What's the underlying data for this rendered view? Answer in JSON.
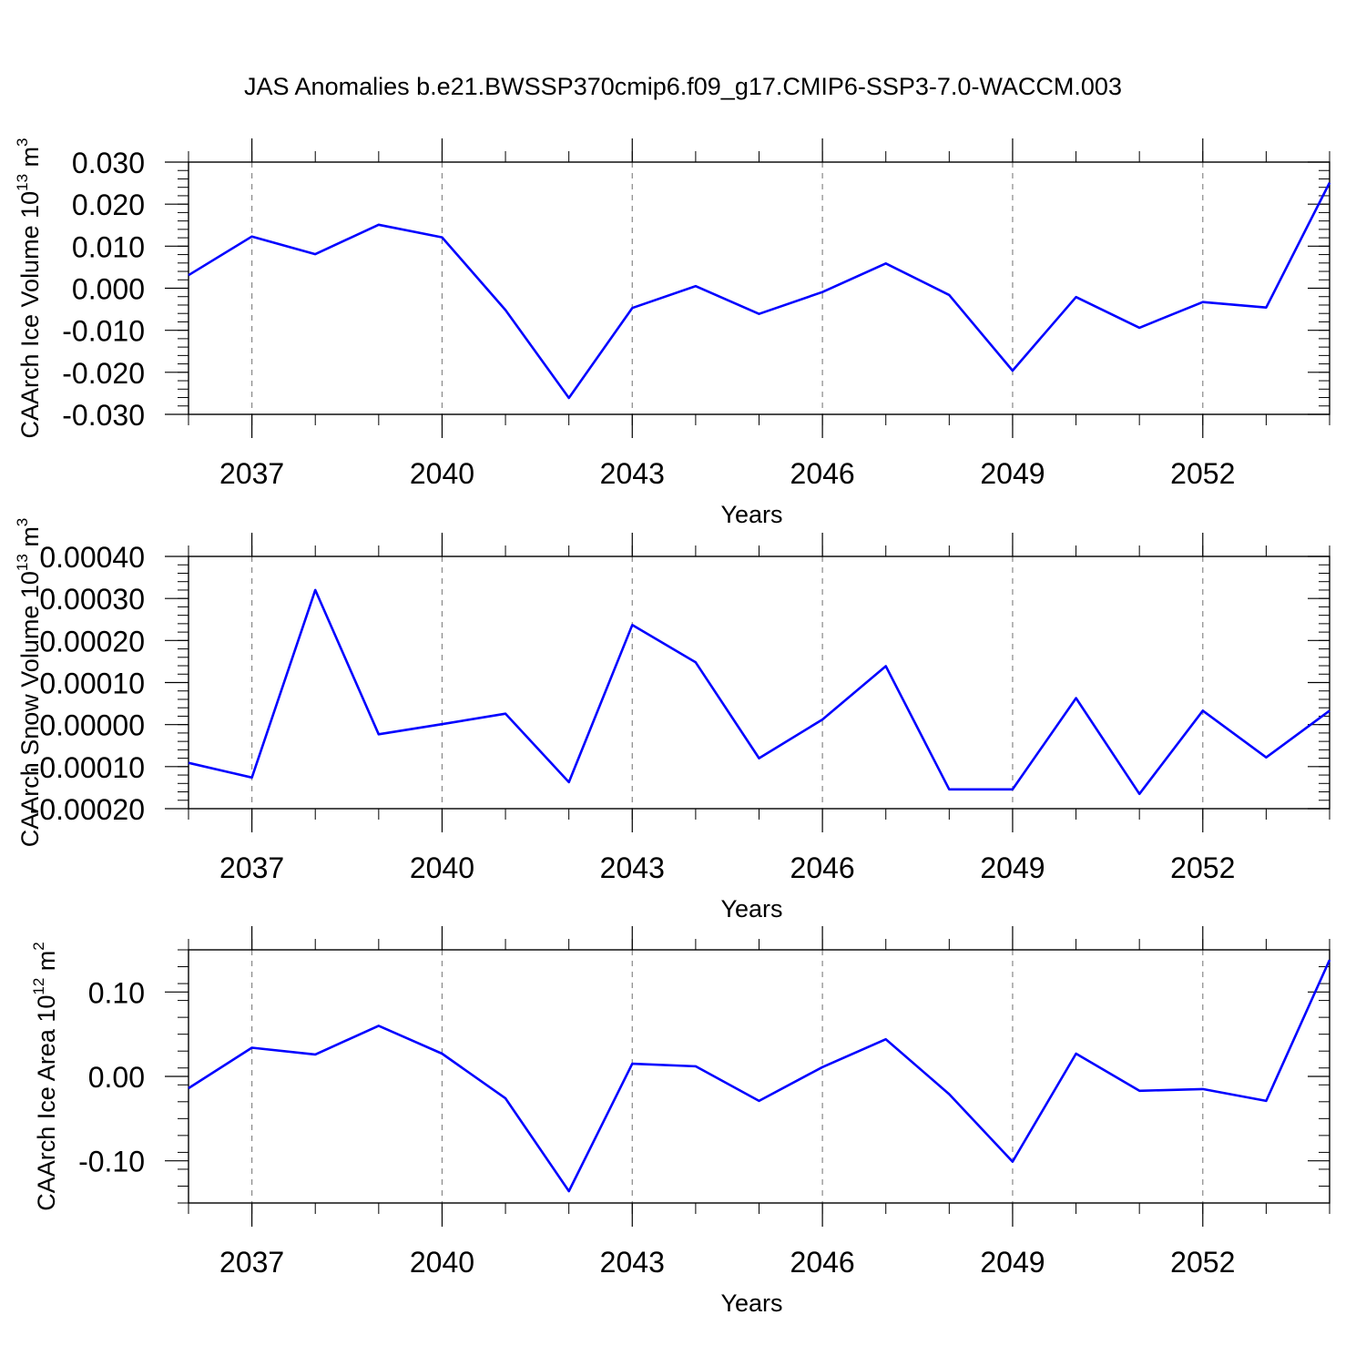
{
  "chart_data": {
    "type": "line",
    "title": "JAS Anomalies b.e21.BWSSP370cmip6.f09_g17.CMIP6-SSP3-7.0-WACCM.003",
    "line_color": "#0000ff",
    "grid": "vertical dashed lines at major year ticks",
    "x": [
      2036,
      2037,
      2038,
      2039,
      2040,
      2041,
      2042,
      2043,
      2044,
      2045,
      2046,
      2047,
      2048,
      2049,
      2050,
      2051,
      2052,
      2053,
      2054
    ],
    "xlim": [
      2036,
      2054
    ],
    "xticks": [
      2037,
      2040,
      2043,
      2046,
      2049,
      2052
    ],
    "xtick_labels": [
      "2037",
      "2040",
      "2043",
      "2046",
      "2049",
      "2052"
    ],
    "panels": [
      {
        "name": "ice-volume",
        "xlabel": "Years",
        "ylabel": "CAArch Ice Volume 10",
        "ylabel_exponent": "13",
        "ylabel_unit": "m",
        "ylabel_unit_exponent": "3",
        "ylim": [
          -0.03,
          0.03
        ],
        "yticks": [
          -0.03,
          -0.02,
          -0.01,
          0.0,
          0.01,
          0.02,
          0.03
        ],
        "ytick_labels": [
          "-0.030",
          "-0.020",
          "-0.010",
          "0.000",
          "0.010",
          "0.020",
          "0.030"
        ],
        "yminor_step": 0.002,
        "values": [
          0.0031,
          0.0123,
          0.0081,
          0.0151,
          0.0121,
          -0.0052,
          -0.0261,
          -0.0047,
          0.0005,
          -0.0061,
          -0.0009,
          0.0059,
          -0.0016,
          -0.0196,
          -0.0021,
          -0.0094,
          -0.0033,
          -0.0046,
          0.0251
        ]
      },
      {
        "name": "snow-volume",
        "xlabel": "Years",
        "ylabel": "CAArch Snow Volume 10",
        "ylabel_exponent": "13",
        "ylabel_unit": "m",
        "ylabel_unit_exponent": "3",
        "ylim": [
          -0.0002,
          0.0004
        ],
        "yticks": [
          -0.0002,
          -0.0001,
          0.0,
          0.0001,
          0.0002,
          0.0003,
          0.0004
        ],
        "ytick_labels": [
          "-0.00020",
          "-0.00010",
          "0.00000",
          "0.00010",
          "0.00020",
          "0.00030",
          "0.00040"
        ],
        "yminor_step": 2e-05,
        "values": [
          -9.1e-05,
          -0.000126,
          0.00032,
          -2.3e-05,
          1e-06,
          2.6e-05,
          -0.000137,
          0.000237,
          0.000148,
          -8e-05,
          1.2e-05,
          0.000139,
          -0.000154,
          -0.000154,
          6.3e-05,
          -0.000165,
          3.3e-05,
          -7.8e-05,
          3.3e-05
        ]
      },
      {
        "name": "ice-area",
        "xlabel": "Years",
        "ylabel": "CAArch Ice Area 10",
        "ylabel_exponent": "12",
        "ylabel_unit": "m",
        "ylabel_unit_exponent": "2",
        "ylim": [
          -0.15,
          0.15
        ],
        "yticks": [
          -0.1,
          0.0,
          0.1
        ],
        "ytick_labels": [
          "-0.10",
          "0.00",
          "0.10"
        ],
        "yminor_step": 0.02,
        "values": [
          -0.014,
          0.034,
          0.026,
          0.06,
          0.027,
          -0.026,
          -0.136,
          0.015,
          0.012,
          -0.029,
          0.011,
          0.044,
          -0.021,
          -0.101,
          0.027,
          -0.017,
          -0.015,
          -0.029,
          0.138
        ]
      }
    ]
  }
}
